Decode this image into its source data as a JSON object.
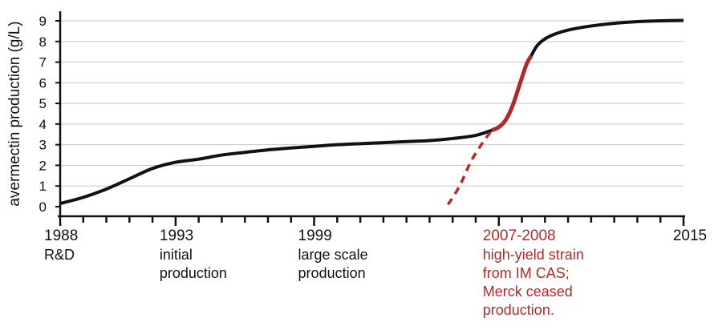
{
  "chart_data": {
    "type": "line",
    "ylabel": "avermectin production (g/L)",
    "xlim": [
      1988,
      2015
    ],
    "ylim": [
      0,
      9
    ],
    "yticks": [
      "0",
      "1",
      "2",
      "3",
      "4",
      "5",
      "6",
      "7",
      "8",
      "9"
    ],
    "grid": true,
    "colors": {
      "main": "#111111",
      "highlight": "#b02a2a",
      "grid": "#c8c8c8"
    },
    "x_annotations": [
      {
        "year": 1988,
        "label": "1988",
        "lines": [
          "R&D"
        ],
        "color": "#111111"
      },
      {
        "year": 1993,
        "label": "1993",
        "lines": [
          "initial",
          "production"
        ],
        "color": "#111111"
      },
      {
        "year": 1999,
        "label": "1999",
        "lines": [
          "large scale",
          "production"
        ],
        "color": "#111111"
      },
      {
        "year": 2007,
        "label": "2007-2008",
        "lines": [
          "high-yield strain",
          "from IM CAS;",
          "Merck ceased",
          "production."
        ],
        "color": "#b02a2a"
      },
      {
        "year": 2015,
        "label": "2015",
        "lines": [],
        "color": "#111111"
      }
    ],
    "series": [
      {
        "style": "solid-black",
        "x": [
          1988,
          1989,
          1990,
          1991,
          1992,
          1993,
          1994,
          1995,
          1996,
          1997,
          1998,
          1999,
          2000,
          2001,
          2002,
          2003,
          2004,
          2005,
          2006,
          2006.7
        ],
        "y": [
          0.15,
          0.45,
          0.85,
          1.35,
          1.85,
          2.15,
          2.3,
          2.5,
          2.63,
          2.75,
          2.84,
          2.92,
          3.0,
          3.05,
          3.1,
          3.15,
          3.2,
          3.3,
          3.45,
          3.7
        ]
      },
      {
        "style": "dashed-red",
        "x": [
          2004.8,
          2005.3,
          2005.8,
          2006.3,
          2006.7
        ],
        "y": [
          0.1,
          1.0,
          2.2,
          3.1,
          3.7
        ]
      },
      {
        "style": "solid-red",
        "x": [
          2006.7,
          2007.0,
          2007.3,
          2007.6,
          2007.9,
          2008.2,
          2008.4
        ],
        "y": [
          3.7,
          3.85,
          4.2,
          4.9,
          5.9,
          6.9,
          7.3
        ]
      },
      {
        "style": "solid-black",
        "x": [
          2008.4,
          2008.7,
          2009.2,
          2010,
          2011,
          2012,
          2013,
          2014,
          2015
        ],
        "y": [
          7.3,
          7.85,
          8.25,
          8.55,
          8.75,
          8.88,
          8.96,
          9.0,
          9.02
        ]
      }
    ]
  }
}
